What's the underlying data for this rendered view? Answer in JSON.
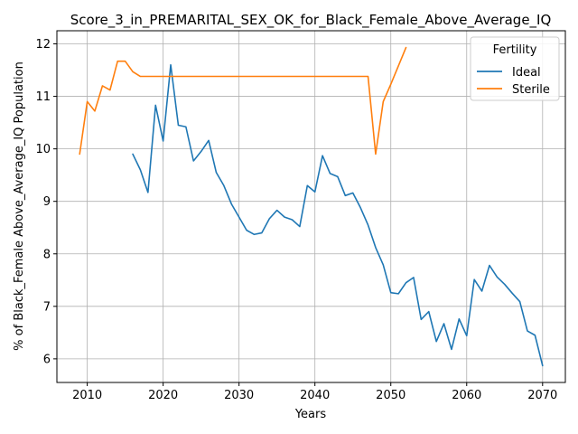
{
  "chart_data": {
    "type": "line",
    "title": "Score_3_in_PREMARITAL_SEX_OK_for_Black_Female_Above_Average_IQ",
    "xlabel": "Years",
    "ylabel": "% of Black_Female Above_Average_IQ Population",
    "xlim": [
      2006,
      2073
    ],
    "ylim": [
      5.55,
      12.25
    ],
    "xticks": [
      2010,
      2020,
      2030,
      2040,
      2050,
      2060,
      2070
    ],
    "yticks": [
      6,
      7,
      8,
      9,
      10,
      11,
      12
    ],
    "grid": true,
    "legend": {
      "title": "Fertility",
      "placement": "top-right"
    },
    "series": [
      {
        "name": "Ideal",
        "color": "#1f77b4",
        "x": [
          2016,
          2017,
          2018,
          2019,
          2020,
          2021,
          2022,
          2023,
          2024,
          2025,
          2026,
          2027,
          2028,
          2029,
          2030,
          2031,
          2032,
          2033,
          2034,
          2035,
          2036,
          2037,
          2038,
          2039,
          2040,
          2041,
          2042,
          2043,
          2044,
          2045,
          2046,
          2047,
          2048,
          2049,
          2050,
          2051,
          2052,
          2053,
          2054,
          2055,
          2056,
          2057,
          2058,
          2059,
          2060,
          2061,
          2062,
          2063,
          2064,
          2065,
          2066,
          2067,
          2068,
          2069,
          2070
        ],
        "y": [
          9.9,
          9.6,
          9.17,
          10.83,
          10.15,
          11.6,
          10.45,
          10.42,
          9.77,
          9.95,
          10.16,
          9.55,
          9.3,
          8.95,
          8.7,
          8.45,
          8.37,
          8.4,
          8.67,
          8.83,
          8.7,
          8.65,
          8.52,
          9.3,
          9.18,
          9.87,
          9.53,
          9.47,
          9.11,
          9.16,
          8.88,
          8.55,
          8.12,
          7.79,
          7.26,
          7.24,
          7.45,
          7.55,
          6.75,
          6.9,
          6.33,
          6.67,
          6.18,
          6.76,
          6.44,
          7.51,
          7.29,
          7.78,
          7.56,
          7.42,
          7.25,
          7.09,
          6.53,
          6.45,
          5.87
        ]
      },
      {
        "name": "Sterile",
        "color": "#ff7f0e",
        "x": [
          2009,
          2010,
          2011,
          2012,
          2013,
          2014,
          2015,
          2016,
          2017,
          2018,
          2019,
          2020,
          2021,
          2022,
          2023,
          2024,
          2025,
          2026,
          2027,
          2028,
          2029,
          2030,
          2031,
          2032,
          2033,
          2034,
          2035,
          2036,
          2037,
          2038,
          2039,
          2040,
          2041,
          2042,
          2043,
          2044,
          2045,
          2046,
          2047,
          2048,
          2049,
          2050,
          2051,
          2052
        ],
        "y": [
          9.9,
          10.9,
          10.72,
          11.2,
          11.12,
          11.67,
          11.67,
          11.47,
          11.38,
          11.38,
          11.38,
          11.38,
          11.38,
          11.38,
          11.38,
          11.38,
          11.38,
          11.38,
          11.38,
          11.38,
          11.38,
          11.38,
          11.38,
          11.38,
          11.38,
          11.38,
          11.38,
          11.38,
          11.38,
          11.38,
          11.38,
          11.38,
          11.38,
          11.38,
          11.38,
          11.38,
          11.38,
          11.38,
          11.38,
          9.9,
          10.9,
          11.23,
          11.58,
          11.93
        ]
      }
    ]
  }
}
